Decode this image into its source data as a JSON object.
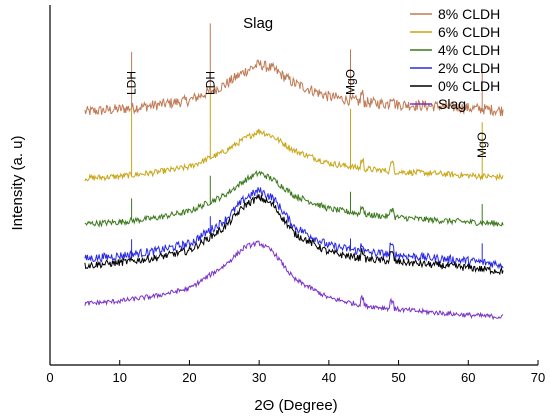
{
  "chart_data": {
    "type": "line",
    "title": "",
    "xlabel": "2Θ (Degree)",
    "ylabel": "Intensity (a. u)",
    "xlim": [
      0,
      70
    ],
    "x_ticks": [
      "0",
      "10",
      "20",
      "30",
      "40",
      "50",
      "60",
      "70"
    ],
    "y_ticks": [],
    "grid": false,
    "legend_position": "top-right",
    "series": [
      {
        "name": "8% CLDH",
        "color": "#c07a55",
        "offset": 5.35,
        "amplitude": 1.35,
        "noise": 0.09,
        "x": [
          5,
          10,
          15,
          20,
          25,
          28,
          30,
          32,
          35,
          40,
          45,
          50,
          55,
          60,
          65
        ],
        "y": [
          0.05,
          0.12,
          0.22,
          0.35,
          0.75,
          1.12,
          1.3,
          1.18,
          0.8,
          0.45,
          0.3,
          0.24,
          0.2,
          0.15,
          0.08
        ],
        "spikes": [
          {
            "x": 11.7,
            "h": 1.5
          },
          {
            "x": 23.0,
            "h": 1.7
          },
          {
            "x": 43.1,
            "h": 1.25
          },
          {
            "x": 62.0,
            "h": 1.05
          }
        ]
      },
      {
        "name": "6% CLDH",
        "color": "#c9a617",
        "offset": 3.6,
        "amplitude": 1.3,
        "noise": 0.05,
        "x": [
          5,
          10,
          15,
          20,
          25,
          28,
          30,
          32,
          35,
          40,
          45,
          50,
          55,
          60,
          65
        ],
        "y": [
          0.05,
          0.1,
          0.2,
          0.35,
          0.75,
          1.1,
          1.3,
          1.15,
          0.78,
          0.45,
          0.3,
          0.22,
          0.18,
          0.12,
          0.08
        ],
        "spikes": [
          {
            "x": 11.7,
            "h": 1.8
          },
          {
            "x": 23.0,
            "h": 1.8
          },
          {
            "x": 43.1,
            "h": 1.6
          },
          {
            "x": 62.0,
            "h": 1.5
          }
        ]
      },
      {
        "name": "4% CLDH",
        "color": "#3d7a1e",
        "offset": 2.4,
        "amplitude": 1.4,
        "noise": 0.05,
        "x": [
          5,
          10,
          15,
          20,
          25,
          28,
          30,
          32,
          35,
          40,
          45,
          50,
          55,
          60,
          65
        ],
        "y": [
          0.05,
          0.1,
          0.2,
          0.38,
          0.8,
          1.2,
          1.4,
          1.22,
          0.8,
          0.45,
          0.3,
          0.22,
          0.15,
          0.1,
          0.05
        ],
        "spikes": [
          {
            "x": 11.7,
            "h": 0.55
          },
          {
            "x": 23.0,
            "h": 0.75
          },
          {
            "x": 43.1,
            "h": 0.55
          },
          {
            "x": 62.0,
            "h": 0.55
          }
        ]
      },
      {
        "name": "2% CLDH",
        "color": "#2a2ae6",
        "offset": 1.33,
        "amplitude": 2.0,
        "noise": 0.07,
        "x": [
          5,
          10,
          15,
          20,
          25,
          28,
          30,
          32,
          35,
          40,
          45,
          50,
          55,
          60,
          65
        ],
        "y": [
          0.2,
          0.28,
          0.4,
          0.6,
          1.2,
          1.8,
          2.0,
          1.8,
          1.05,
          0.55,
          0.38,
          0.3,
          0.22,
          0.15,
          0.05
        ],
        "spikes": [
          {
            "x": 11.7,
            "h": 0.5
          },
          {
            "x": 23.0,
            "h": 0.45
          },
          {
            "x": 43.1,
            "h": 0.3
          },
          {
            "x": 62.0,
            "h": 0.45
          }
        ]
      },
      {
        "name": "0% CLDH",
        "color": "#000000",
        "offset": 1.15,
        "amplitude": 2.0,
        "noise": 0.06,
        "x": [
          5,
          10,
          15,
          20,
          25,
          28,
          30,
          32,
          35,
          40,
          45,
          50,
          55,
          60,
          65
        ],
        "y": [
          0.2,
          0.28,
          0.4,
          0.6,
          1.2,
          1.8,
          2.0,
          1.8,
          1.05,
          0.55,
          0.38,
          0.3,
          0.22,
          0.15,
          0.05
        ],
        "spikes": []
      },
      {
        "name": "Slag",
        "color": "#7a33c8",
        "offset": 0.0,
        "amplitude": 1.95,
        "noise": 0.04,
        "x": [
          5,
          10,
          15,
          20,
          25,
          28,
          30,
          32,
          35,
          40,
          45,
          50,
          55,
          60,
          65
        ],
        "y": [
          0.35,
          0.42,
          0.55,
          0.75,
          1.35,
          1.85,
          1.95,
          1.72,
          1.0,
          0.5,
          0.3,
          0.2,
          0.12,
          0.05,
          0.0
        ],
        "spikes": []
      }
    ],
    "annotations": [
      {
        "text": "Slag",
        "x": 30,
        "kind": "main"
      },
      {
        "text": "LDH",
        "x": 11.7,
        "kind": "vertical"
      },
      {
        "text": "LDH",
        "x": 23.0,
        "kind": "vertical"
      },
      {
        "text": "MgO",
        "x": 43.1,
        "kind": "vertical"
      },
      {
        "text": "MgO",
        "x": 62.0,
        "kind": "vertical"
      }
    ]
  }
}
